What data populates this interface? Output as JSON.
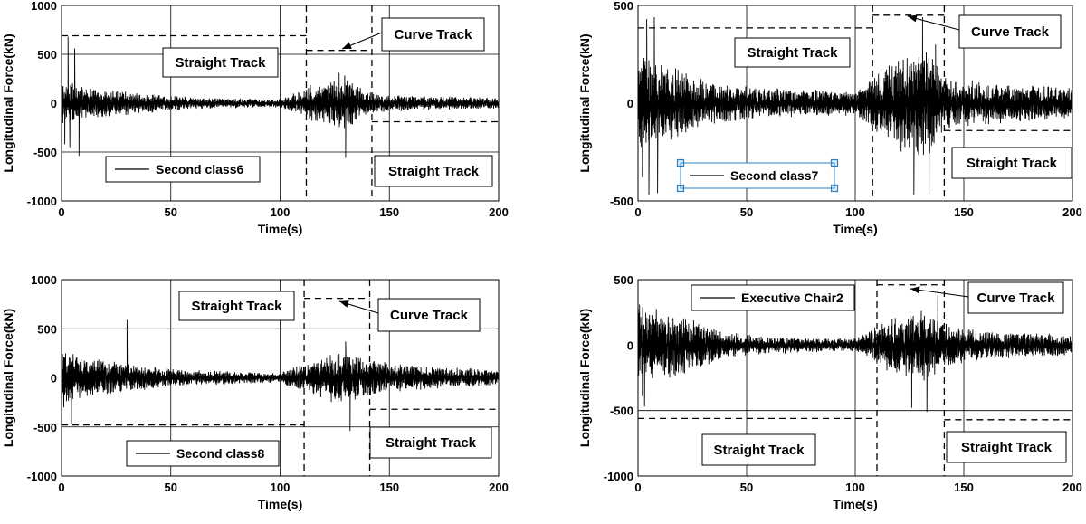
{
  "figure": {
    "panels": [
      {
        "panel_name": "panel-second-class6",
        "legend": "Second class6",
        "legend_selected": false,
        "annotations": [
          {
            "text": "Straight Track"
          },
          {
            "text": "Curve Track"
          },
          {
            "text": "Straight Track"
          }
        ]
      },
      {
        "panel_name": "panel-second-class7",
        "legend": "Second class7",
        "legend_selected": true,
        "annotations": [
          {
            "text": "Straight Track"
          },
          {
            "text": "Curve Track"
          },
          {
            "text": "Straight Track"
          }
        ]
      },
      {
        "panel_name": "panel-second-class8",
        "legend": "Second class8",
        "legend_selected": false,
        "annotations": [
          {
            "text": "Straight Track"
          },
          {
            "text": "Curve Track"
          },
          {
            "text": "Straight Track"
          }
        ]
      },
      {
        "panel_name": "panel-executive-chair2",
        "legend": "Executive Chair2",
        "legend_selected": false,
        "annotations": [
          {
            "text": "Curve Track"
          },
          {
            "text": "Straight Track"
          },
          {
            "text": "Straight Track"
          }
        ]
      }
    ]
  },
  "chart_data": [
    {
      "type": "line",
      "xlabel": "Time(s)",
      "ylabel": "Longitudinal Force(kN)",
      "xlim": [
        0,
        200
      ],
      "ylim": [
        -1000,
        1000
      ],
      "xticks": [
        0,
        50,
        100,
        150,
        200
      ],
      "yticks": [
        -1000,
        -500,
        0,
        500,
        1000
      ],
      "grid": true,
      "legend_position": "bottom-left",
      "series": [
        {
          "name": "Second class6",
          "color": "#000000",
          "envelope": {
            "t": [
              0,
              10,
              30,
              60,
              100,
              110,
              115,
              125,
              130,
              135,
              140,
              145,
              170,
              200
            ],
            "amp": [
              220,
              160,
              110,
              55,
              40,
              120,
              180,
              230,
              250,
              180,
              110,
              85,
              65,
              55
            ]
          },
          "spikes": [
            {
              "t": 3,
              "v": 680
            },
            {
              "t": 3.8,
              "v": -450
            },
            {
              "t": 6,
              "v": 560
            },
            {
              "t": 8,
              "v": -540
            },
            {
              "t": 1.5,
              "v": -420
            },
            {
              "t": 130,
              "v": -560
            },
            {
              "t": 127,
              "v": 310
            }
          ]
        }
      ],
      "boundaries": [
        {
          "type": "vertical",
          "x": 112,
          "y_range": [
            -1000,
            1000
          ]
        },
        {
          "type": "vertical",
          "x": 142,
          "y_range": [
            -1000,
            1000
          ]
        },
        {
          "type": "level",
          "x_range": [
            0,
            112
          ],
          "y": 690
        },
        {
          "type": "level",
          "x_range": [
            112,
            142
          ],
          "y": 540
        },
        {
          "type": "level",
          "x_range": [
            142,
            200
          ],
          "y": -190
        }
      ]
    },
    {
      "type": "line",
      "xlabel": "Time(s)",
      "ylabel": "Longitudinal Force(kN)",
      "xlim": [
        0,
        200
      ],
      "ylim": [
        -500,
        500
      ],
      "xticks": [
        0,
        50,
        100,
        150,
        200
      ],
      "yticks": [
        -500,
        0,
        500
      ],
      "grid": true,
      "legend_position": "bottom-left",
      "series": [
        {
          "name": "Second class7",
          "color": "#000000",
          "envelope": {
            "t": [
              0,
              10,
              30,
              60,
              100,
              110,
              120,
              130,
              135,
              140,
              145,
              170,
              200
            ],
            "amp": [
              230,
              190,
              110,
              70,
              55,
              140,
              220,
              270,
              230,
              140,
              110,
              90,
              75
            ]
          },
          "spikes": [
            {
              "t": 2,
              "v": -380
            },
            {
              "t": 4,
              "v": 430
            },
            {
              "t": 5,
              "v": -470
            },
            {
              "t": 7.5,
              "v": 440
            },
            {
              "t": 9,
              "v": -460
            },
            {
              "t": 127,
              "v": -470
            },
            {
              "t": 131,
              "v": 440
            },
            {
              "t": 134,
              "v": -470
            },
            {
              "t": 137,
              "v": 300
            }
          ]
        }
      ],
      "boundaries": [
        {
          "type": "vertical",
          "x": 108,
          "y_range": [
            -500,
            500
          ]
        },
        {
          "type": "vertical",
          "x": 141,
          "y_range": [
            -500,
            500
          ]
        },
        {
          "type": "level",
          "x_range": [
            0,
            108
          ],
          "y": 385
        },
        {
          "type": "level",
          "x_range": [
            108,
            141
          ],
          "y": 450
        },
        {
          "type": "level",
          "x_range": [
            141,
            200
          ],
          "y": -140
        }
      ]
    },
    {
      "type": "line",
      "xlabel": "Time(s)",
      "ylabel": "Longitudinal Force(kN)",
      "xlim": [
        0,
        200
      ],
      "ylim": [
        -1000,
        1000
      ],
      "xticks": [
        0,
        50,
        100,
        150,
        200
      ],
      "yticks": [
        -1000,
        -500,
        0,
        500,
        1000
      ],
      "grid": true,
      "legend_position": "bottom-left",
      "series": [
        {
          "name": "Second class8",
          "color": "#000000",
          "envelope": {
            "t": [
              0,
              10,
              30,
              60,
              100,
              110,
              120,
              130,
              140,
              150,
              175,
              200
            ],
            "amp": [
              260,
              210,
              130,
              70,
              45,
              130,
              200,
              250,
              180,
              130,
              100,
              70
            ]
          },
          "spikes": [
            {
              "t": 1,
              "v": -300
            },
            {
              "t": 4.5,
              "v": -470
            },
            {
              "t": 30,
              "v": 590
            },
            {
              "t": 132,
              "v": -540
            },
            {
              "t": 130,
              "v": 370
            }
          ]
        }
      ],
      "boundaries": [
        {
          "type": "vertical",
          "x": 111,
          "y_range": [
            -1000,
            1000
          ]
        },
        {
          "type": "vertical",
          "x": 141,
          "y_range": [
            -1000,
            1000
          ]
        },
        {
          "type": "level",
          "x_range": [
            0,
            111
          ],
          "y": -480
        },
        {
          "type": "level",
          "x_range": [
            111,
            141
          ],
          "y": 810
        },
        {
          "type": "level",
          "x_range": [
            141,
            200
          ],
          "y": -320
        }
      ]
    },
    {
      "type": "line",
      "xlabel": "Time(s)",
      "ylabel": "Longitudinal Force(kN)",
      "xlim": [
        0,
        200
      ],
      "ylim": [
        -1000,
        500
      ],
      "xticks": [
        0,
        50,
        100,
        150,
        200
      ],
      "yticks": [
        -1000,
        -500,
        0,
        500
      ],
      "grid": true,
      "legend_position": "top-left",
      "series": [
        {
          "name": "Executive Chair2",
          "color": "#000000",
          "envelope": {
            "t": [
              0,
              10,
              25,
              40,
              60,
              100,
              110,
              120,
              130,
              140,
              150,
              175,
              200
            ],
            "amp": [
              280,
              260,
              200,
              90,
              60,
              45,
              140,
              210,
              260,
              170,
              120,
              90,
              70
            ]
          },
          "spikes": [
            {
              "t": 2,
              "v": -390
            },
            {
              "t": 3,
              "v": -470
            },
            {
              "t": 126,
              "v": -480
            },
            {
              "t": 133,
              "v": -510
            },
            {
              "t": 138,
              "v": 380
            }
          ]
        }
      ],
      "boundaries": [
        {
          "type": "vertical",
          "x": 110,
          "y_range": [
            -1000,
            500
          ]
        },
        {
          "type": "vertical",
          "x": 141,
          "y_range": [
            -1000,
            500
          ]
        },
        {
          "type": "level",
          "x_range": [
            0,
            110
          ],
          "y": -560
        },
        {
          "type": "level",
          "x_range": [
            110,
            141
          ],
          "y": 460
        },
        {
          "type": "level",
          "x_range": [
            141,
            200
          ],
          "y": -570
        }
      ]
    }
  ]
}
